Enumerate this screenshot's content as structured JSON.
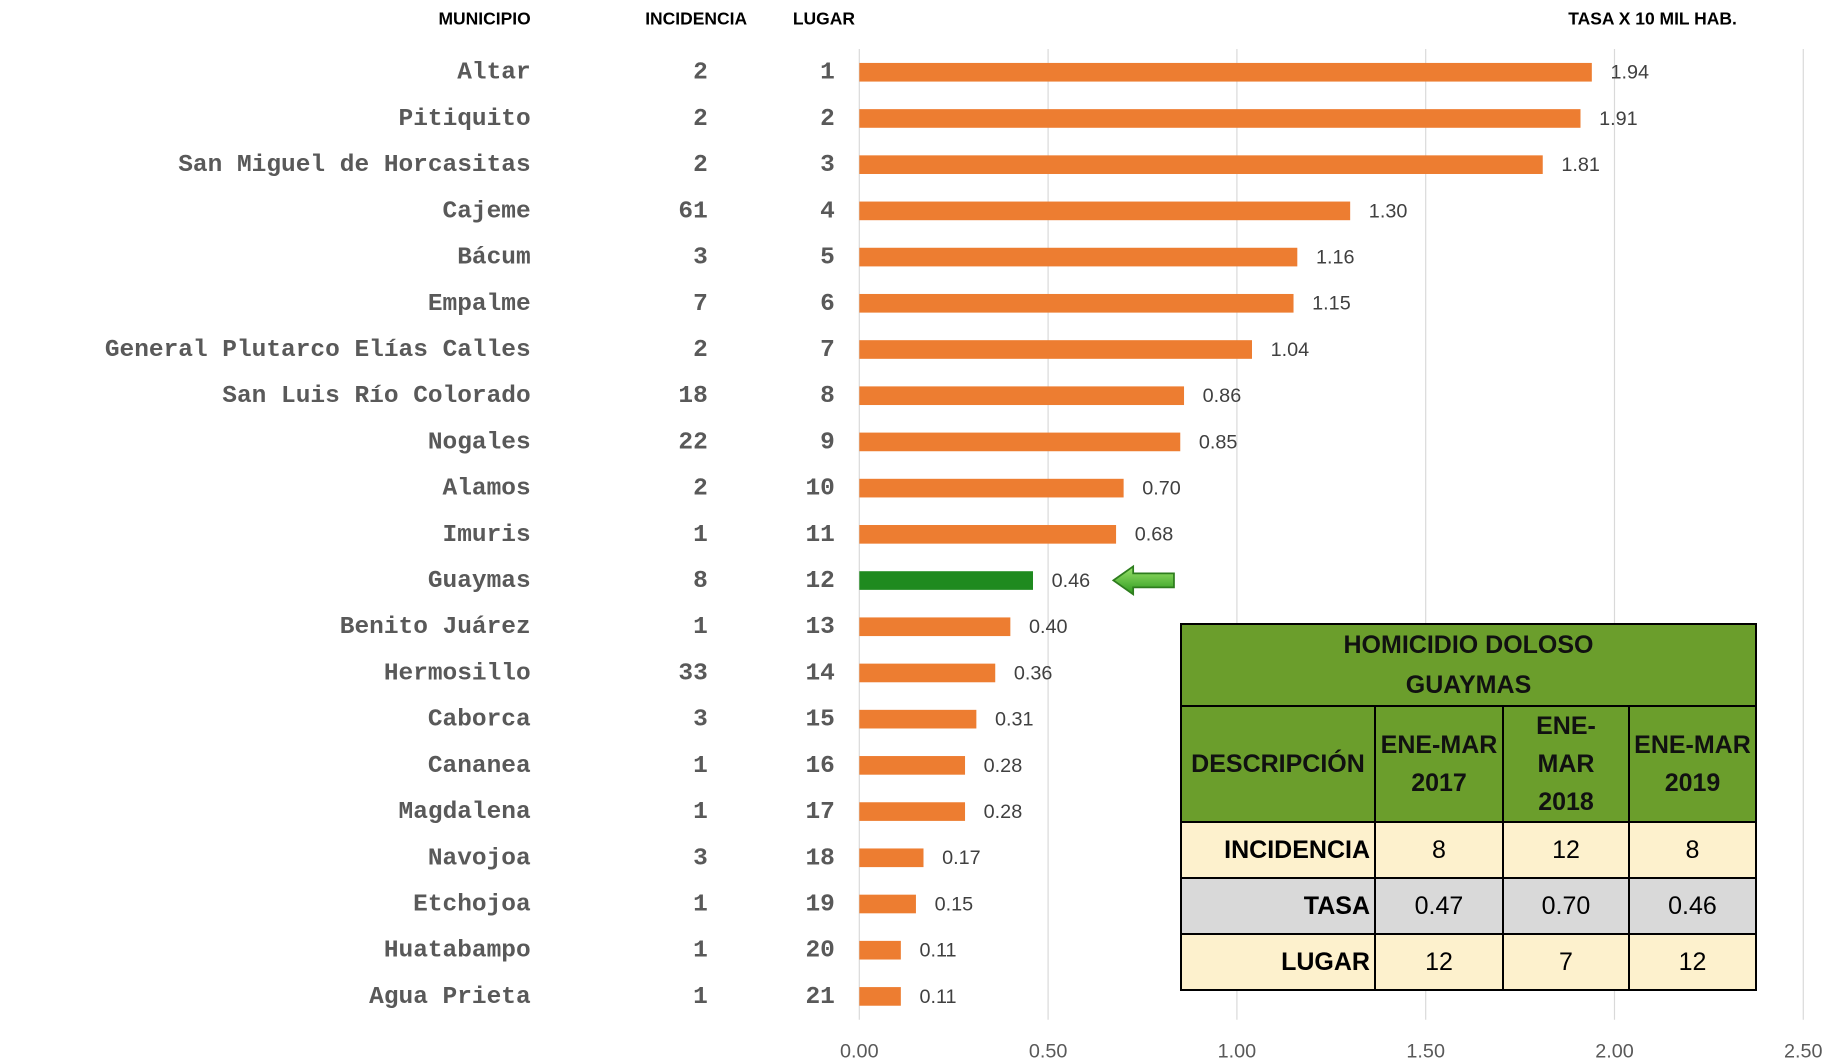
{
  "chart_data": {
    "type": "bar",
    "orientation": "horizontal",
    "headers": [
      "MUNICIPIO",
      "INCIDENCIA",
      "LUGAR",
      "TASA X 10 MIL HAB."
    ],
    "categories": [
      "Altar",
      "Pitiquito",
      "San Miguel de Horcasitas",
      "Cajeme",
      "Bácum",
      "Empalme",
      "General Plutarco Elías Calles",
      "San Luis Río Colorado",
      "Nogales",
      "Alamos",
      "Imuris",
      "Guaymas",
      "Benito Juárez",
      "Hermosillo",
      "Caborca",
      "Cananea",
      "Magdalena",
      "Navojoa",
      "Etchojoa",
      "Huatabampo",
      "Agua Prieta"
    ],
    "incidencia": [
      2,
      2,
      2,
      61,
      3,
      7,
      2,
      18,
      22,
      2,
      1,
      8,
      1,
      33,
      3,
      1,
      1,
      3,
      1,
      1,
      1
    ],
    "lugar": [
      1,
      2,
      3,
      4,
      5,
      6,
      7,
      8,
      9,
      10,
      11,
      12,
      13,
      14,
      15,
      16,
      17,
      18,
      19,
      20,
      21
    ],
    "values": [
      1.94,
      1.91,
      1.81,
      1.3,
      1.16,
      1.15,
      1.04,
      0.86,
      0.85,
      0.7,
      0.68,
      0.46,
      0.4,
      0.36,
      0.31,
      0.28,
      0.28,
      0.17,
      0.15,
      0.11,
      0.11
    ],
    "value_labels": [
      "1.94",
      "1.91",
      "1.81",
      "1.30",
      "1.16",
      "1.15",
      "1.04",
      "0.86",
      "0.85",
      "0.70",
      "0.68",
      "0.46",
      "0.40",
      "0.36",
      "0.31",
      "0.28",
      "0.28",
      "0.17",
      "0.15",
      "0.11",
      "0.11"
    ],
    "colors": [
      "#ed7d31",
      "#ed7d31",
      "#ed7d31",
      "#ed7d31",
      "#ed7d31",
      "#ed7d31",
      "#ed7d31",
      "#ed7d31",
      "#ed7d31",
      "#ed7d31",
      "#ed7d31",
      "#1f8a1f",
      "#ed7d31",
      "#ed7d31",
      "#ed7d31",
      "#ed7d31",
      "#ed7d31",
      "#ed7d31",
      "#ed7d31",
      "#ed7d31",
      "#ed7d31"
    ],
    "xlim": [
      0,
      2.5
    ],
    "xticks": [
      {
        "value": 0,
        "label": "0.00"
      },
      {
        "value": 0.5,
        "label": "0.50"
      },
      {
        "value": 1,
        "label": "1.00"
      },
      {
        "value": 1.5,
        "label": "1.50"
      },
      {
        "value": 2,
        "label": "2.00"
      },
      {
        "value": 2.5,
        "label": "2.50"
      }
    ],
    "grid": true
  },
  "table": {
    "title": "HOMICIDIO DOLOSO GUAYMAS",
    "headers": [
      "DESCRIPCIÓN",
      "ENE-MAR 2017",
      "ENE-MAR 2018",
      "ENE-MAR 2019"
    ],
    "rows": [
      [
        "INCIDENCIA",
        "8",
        "12",
        "8"
      ],
      [
        "TASA",
        "0.47",
        "0.70",
        "0.46"
      ],
      [
        "LUGAR",
        "12",
        "7",
        "12"
      ]
    ]
  }
}
